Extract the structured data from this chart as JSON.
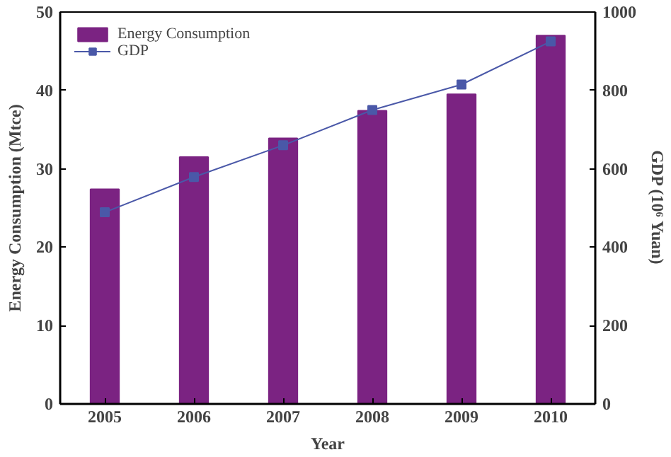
{
  "chart_data": {
    "type": "bar",
    "xlabel": "Year",
    "ylabel": "Energy Consumption (Mtce)",
    "y2label": "GDP (10⁶ Yuan)",
    "categories": [
      "2005",
      "2006",
      "2007",
      "2008",
      "2009",
      "2010"
    ],
    "series": [
      {
        "name": "Energy Consumption",
        "color": "#7b2382",
        "values": [
          27.4,
          31.5,
          33.9,
          37.4,
          39.5,
          47.0
        ]
      },
      {
        "name": "GDP",
        "type": "line",
        "axis": "y2",
        "color": "#4a58a8",
        "values": [
          489,
          579,
          660,
          750,
          815,
          925
        ]
      }
    ],
    "ylim": [
      0,
      50
    ],
    "yticks": [
      0,
      10,
      20,
      30,
      40,
      50
    ],
    "y2lim": [
      0,
      1000
    ],
    "y2ticks": [
      0,
      200,
      400,
      600,
      800,
      1000
    ],
    "legend": "top left",
    "marker": "square",
    "line_style": "solid",
    "grid": false
  }
}
